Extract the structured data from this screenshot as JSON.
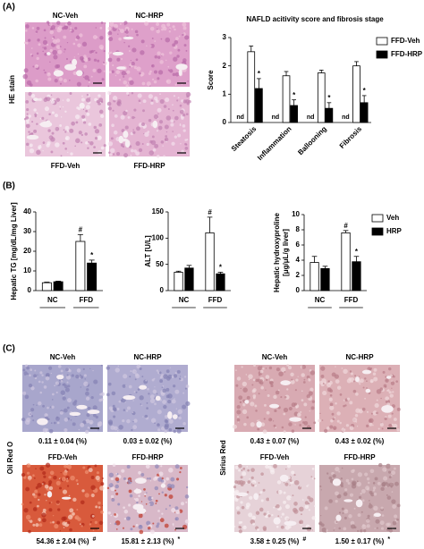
{
  "figure": {
    "panel_labels": [
      "(A)",
      "(B)",
      "(C)"
    ],
    "he": {
      "stain": "HE stain",
      "labels": [
        "NC-Veh",
        "NC-HRP",
        "FFD-Veh",
        "FFD-HRP"
      ]
    },
    "oil": {
      "stain": "Oil Red O",
      "labels": [
        "NC-Veh",
        "NC-HRP",
        "FFD-Veh",
        "FFD-HRP"
      ],
      "quant": [
        "0.11 ± 0.04 (%)",
        "0.03 ± 0.02 (%)",
        "54.36 ± 2.04 (%)",
        "15.81 ± 2.13 (%)"
      ],
      "quant_marks": [
        null,
        null,
        "#",
        "*"
      ]
    },
    "sirius": {
      "stain": "Sirius Red",
      "labels": [
        "NC-Veh",
        "NC-HRP",
        "FFD-Veh",
        "FFD-HRP"
      ],
      "quant": [
        "0.43 ± 0.07 (%)",
        "0.43 ± 0.02 (%)",
        "3.58 ± 0.25 (%)",
        "1.50 ± 0.17 (%)"
      ],
      "quant_marks": [
        null,
        null,
        "#",
        "*"
      ]
    }
  },
  "chart_data": [
    {
      "type": "bar",
      "title": "NAFLD acitivity score and fibrosis stage",
      "ylabel": "Score",
      "categories": [
        "Steatosis",
        "Inflammation",
        "Ballooning",
        "Fibrosis"
      ],
      "nd_labels": [
        "nd",
        "nd",
        "nd",
        "nd"
      ],
      "series": [
        {
          "name": "FFD-Veh",
          "color": "#ffffff",
          "values": [
            2.5,
            1.65,
            1.75,
            2.0
          ],
          "errors": [
            0.2,
            0.15,
            0.1,
            0.15
          ]
        },
        {
          "name": "FFD-HRP",
          "color": "#000000",
          "values": [
            1.2,
            0.6,
            0.5,
            0.7
          ],
          "errors": [
            0.35,
            0.2,
            0.2,
            0.25
          ],
          "annotations": [
            "*",
            "*",
            "*",
            "*"
          ]
        }
      ],
      "ylim": [
        0,
        3
      ],
      "yticks": [
        0,
        1,
        2,
        3
      ],
      "legend": "upper right"
    },
    {
      "type": "bar",
      "ylabel": "Hepatic TG [mg/dL/mg Liver]",
      "categories": [
        "NC",
        "FFD"
      ],
      "series": [
        {
          "name": "Veh",
          "color": "#ffffff",
          "values": [
            4,
            25
          ],
          "errors": [
            0.3,
            3.5
          ],
          "annotations": [
            null,
            "#"
          ]
        },
        {
          "name": "HRP",
          "color": "#000000",
          "values": [
            4.5,
            14
          ],
          "errors": [
            0.3,
            1.5
          ],
          "annotations": [
            null,
            "*"
          ]
        }
      ],
      "ylim": [
        0,
        40
      ],
      "yticks": [
        0,
        10,
        20,
        30,
        40
      ]
    },
    {
      "type": "bar",
      "ylabel": "ALT [U/L]",
      "categories": [
        "NC",
        "FFD"
      ],
      "series": [
        {
          "name": "Veh",
          "color": "#ffffff",
          "values": [
            35,
            110
          ],
          "errors": [
            2,
            30
          ],
          "annotations": [
            null,
            "#"
          ]
        },
        {
          "name": "HRP",
          "color": "#000000",
          "values": [
            43,
            32
          ],
          "errors": [
            5,
            3
          ],
          "annotations": [
            null,
            "*"
          ]
        }
      ],
      "ylim": [
        0,
        150
      ],
      "yticks": [
        0,
        50,
        100,
        150
      ]
    },
    {
      "type": "bar",
      "ylabel": [
        "Hepatic hydroxyproline",
        "[μg/μL/g liver]"
      ],
      "categories": [
        "NC",
        "FFD"
      ],
      "series": [
        {
          "name": "Veh",
          "color": "#ffffff",
          "values": [
            3.7,
            7.6
          ],
          "errors": [
            0.8,
            0.3
          ],
          "annotations": [
            null,
            "#"
          ]
        },
        {
          "name": "HRP",
          "color": "#000000",
          "values": [
            2.9,
            3.8
          ],
          "errors": [
            0.3,
            0.7
          ],
          "annotations": [
            null,
            "*"
          ]
        }
      ],
      "ylim": [
        0,
        10
      ],
      "yticks": [
        0,
        2,
        4,
        6,
        8,
        10
      ],
      "legend": "upper right"
    }
  ]
}
